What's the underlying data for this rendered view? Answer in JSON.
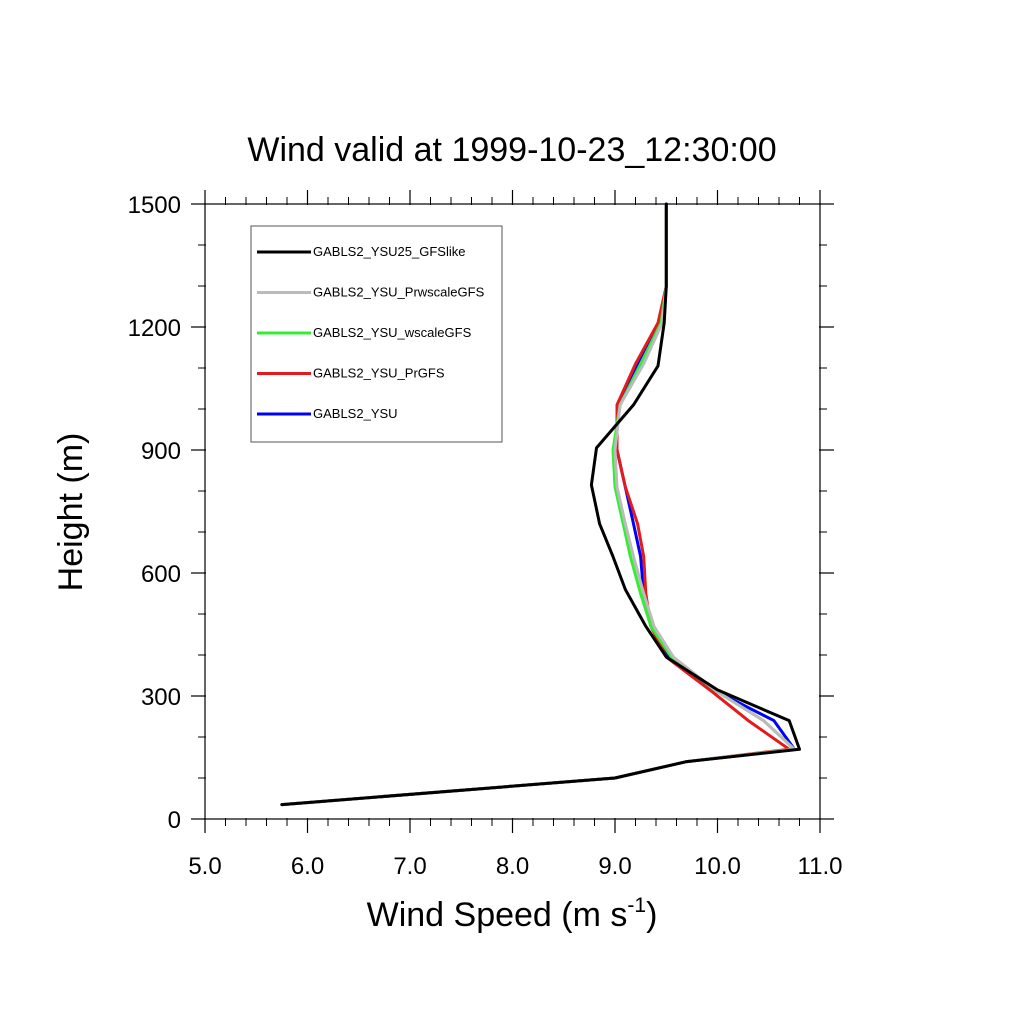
{
  "chart_data": {
    "type": "line",
    "title": "Wind valid at 1999-10-23_12:30:00",
    "xlabel": "Wind Speed (m s",
    "xlabel_exponent": "-1",
    "xlabel_close": ")",
    "ylabel": "Height (m)",
    "xlim": [
      5.0,
      11.0
    ],
    "ylim": [
      0,
      1500
    ],
    "x_ticks": [
      5.0,
      6.0,
      7.0,
      8.0,
      9.0,
      10.0,
      11.0
    ],
    "x_tick_labels": [
      "5.0",
      "6.0",
      "7.0",
      "8.0",
      "9.0",
      "10.0",
      "11.0"
    ],
    "y_ticks": [
      0,
      300,
      600,
      900,
      1200,
      1500
    ],
    "y_tick_labels": [
      "0",
      "300",
      "600",
      "900",
      "1200",
      "1500"
    ],
    "x_minor_step": 0.2,
    "y_minor_step": 100,
    "grid": false,
    "legend_position": "top-left",
    "series": [
      {
        "name": "GABLS2_YSU",
        "color": "#0000ff",
        "points": [
          [
            5.75,
            35
          ],
          [
            9.0,
            100
          ],
          [
            9.7,
            140
          ],
          [
            10.75,
            170
          ],
          [
            10.55,
            240
          ],
          [
            10.0,
            310
          ],
          [
            9.5,
            400
          ],
          [
            9.35,
            470
          ],
          [
            9.28,
            550
          ],
          [
            9.25,
            640
          ],
          [
            9.18,
            720
          ],
          [
            9.1,
            810
          ],
          [
            9.02,
            900
          ],
          [
            9.02,
            1000
          ],
          [
            9.2,
            1100
          ],
          [
            9.45,
            1210
          ],
          [
            9.5,
            1300
          ],
          [
            9.5,
            1500
          ]
        ]
      },
      {
        "name": "GABLS2_YSU_PrGFS",
        "color": "#e41a1c",
        "points": [
          [
            5.75,
            35
          ],
          [
            9.0,
            100
          ],
          [
            9.7,
            140
          ],
          [
            10.7,
            170
          ],
          [
            10.3,
            240
          ],
          [
            9.95,
            310
          ],
          [
            9.5,
            395
          ],
          [
            9.35,
            470
          ],
          [
            9.3,
            550
          ],
          [
            9.28,
            640
          ],
          [
            9.22,
            720
          ],
          [
            9.1,
            810
          ],
          [
            9.02,
            900
          ],
          [
            9.02,
            1010
          ],
          [
            9.2,
            1110
          ],
          [
            9.42,
            1210
          ],
          [
            9.5,
            1300
          ],
          [
            9.5,
            1500
          ]
        ]
      },
      {
        "name": "GABLS2_YSU_wscaleGFS",
        "color": "#33ee33",
        "points": [
          [
            5.75,
            35
          ],
          [
            9.0,
            100
          ],
          [
            9.7,
            140
          ],
          [
            10.75,
            170
          ],
          [
            10.45,
            240
          ],
          [
            10.0,
            310
          ],
          [
            9.55,
            395
          ],
          [
            9.35,
            470
          ],
          [
            9.25,
            550
          ],
          [
            9.15,
            640
          ],
          [
            9.08,
            720
          ],
          [
            9.0,
            810
          ],
          [
            8.98,
            900
          ],
          [
            9.05,
            1010
          ],
          [
            9.25,
            1110
          ],
          [
            9.45,
            1210
          ],
          [
            9.5,
            1300
          ],
          [
            9.5,
            1500
          ]
        ]
      },
      {
        "name": "GABLS2_YSU_PrwscaleGFS",
        "color": "#bbbbbb",
        "points": [
          [
            5.75,
            35
          ],
          [
            9.0,
            100
          ],
          [
            9.7,
            140
          ],
          [
            10.75,
            170
          ],
          [
            10.45,
            240
          ],
          [
            10.0,
            310
          ],
          [
            9.57,
            395
          ],
          [
            9.38,
            470
          ],
          [
            9.28,
            550
          ],
          [
            9.18,
            640
          ],
          [
            9.1,
            720
          ],
          [
            9.02,
            810
          ],
          [
            9.0,
            900
          ],
          [
            9.05,
            1010
          ],
          [
            9.28,
            1110
          ],
          [
            9.46,
            1210
          ],
          [
            9.5,
            1300
          ],
          [
            9.5,
            1500
          ]
        ]
      },
      {
        "name": "GABLS2_YSU25_GFSlike",
        "color": "#000000",
        "points": [
          [
            5.75,
            35
          ],
          [
            9.0,
            100
          ],
          [
            9.7,
            140
          ],
          [
            10.8,
            170
          ],
          [
            10.7,
            240
          ],
          [
            10.0,
            315
          ],
          [
            9.5,
            395
          ],
          [
            9.3,
            470
          ],
          [
            9.1,
            560
          ],
          [
            8.98,
            640
          ],
          [
            8.85,
            720
          ],
          [
            8.77,
            815
          ],
          [
            8.82,
            905
          ],
          [
            9.18,
            1010
          ],
          [
            9.42,
            1105
          ],
          [
            9.48,
            1210
          ],
          [
            9.5,
            1300
          ],
          [
            9.5,
            1500
          ]
        ]
      }
    ],
    "legend_order": [
      "GABLS2_YSU25_GFSlike",
      "GABLS2_YSU_PrwscaleGFS",
      "GABLS2_YSU_wscaleGFS",
      "GABLS2_YSU_PrGFS",
      "GABLS2_YSU"
    ]
  }
}
